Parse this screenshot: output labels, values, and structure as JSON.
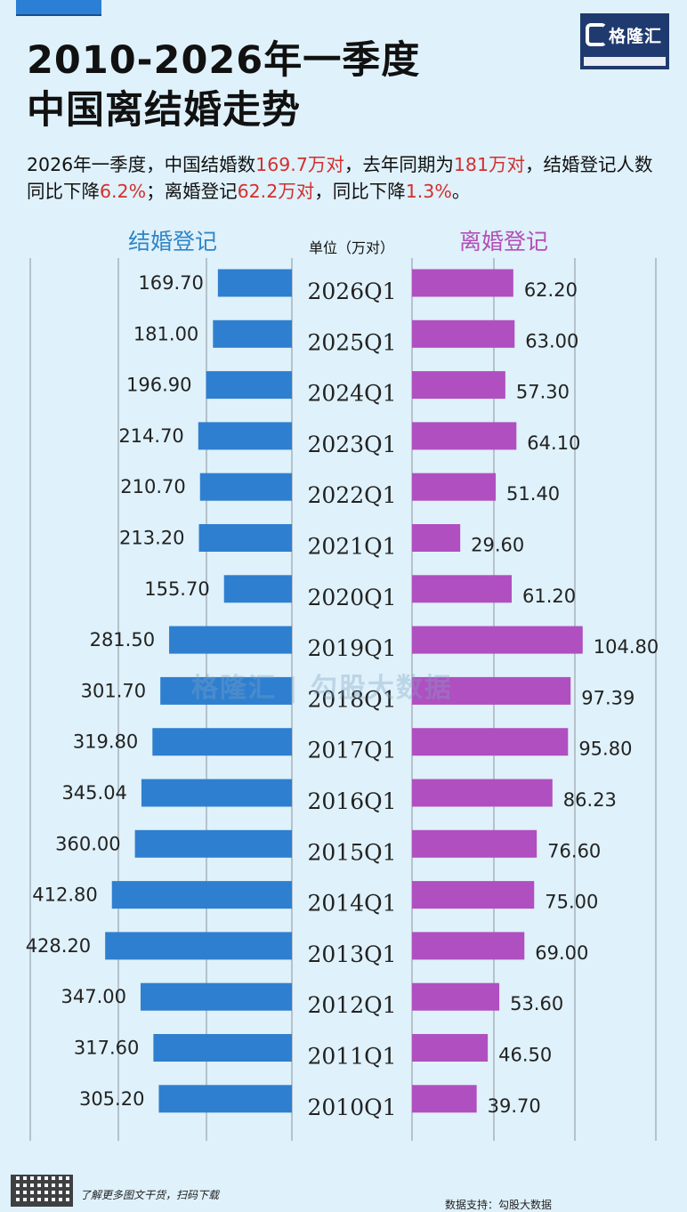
{
  "title_line1": "2010-2026年一季度",
  "title_line2": "中国离结婚走势",
  "logo_text": "格隆汇",
  "summary": {
    "p1": "2026年一季度，中国结婚数",
    "v1": "169.7万对",
    "p2": "，去年同期为",
    "v2": "181万对",
    "p3": "，结婚登记人数同比下降",
    "v3": "6.2%",
    "p4": "；离婚登记",
    "v4": "62.2万对",
    "p5": "，同比下降",
    "v5": "1.3%",
    "p6": "。"
  },
  "watermark": "格隆汇 | 勾股大数据",
  "footer_left": "了解更多图文干货，扫码下载",
  "footer_right": "数据支持：勾股大数据",
  "colors": {
    "marriage": "#2f7fd0",
    "divorce": "#b04fc0",
    "highlight": "#d32f2f",
    "background": "#dff1fa"
  },
  "chart_data": {
    "type": "bar",
    "orientation": "horizontal-butterfly",
    "unit": "单位（万对）",
    "categories": [
      "2026Q1",
      "2025Q1",
      "2024Q1",
      "2023Q1",
      "2022Q1",
      "2021Q1",
      "2020Q1",
      "2019Q1",
      "2018Q1",
      "2017Q1",
      "2016Q1",
      "2015Q1",
      "2014Q1",
      "2013Q1",
      "2012Q1",
      "2011Q1",
      "2010Q1"
    ],
    "series": [
      {
        "name": "结婚登记",
        "side": "left",
        "values": [
          169.7,
          181.0,
          196.9,
          214.7,
          210.7,
          213.2,
          155.7,
          281.5,
          301.7,
          319.8,
          345.04,
          360.0,
          412.8,
          428.2,
          347.0,
          317.6,
          305.2
        ],
        "labels": [
          "169.70",
          "181.00",
          "196.90",
          "214.70",
          "210.70",
          "213.20",
          "155.70",
          "281.50",
          "301.70",
          "319.80",
          "345.04",
          "360.00",
          "412.80",
          "428.20",
          "347.00",
          "317.60",
          "305.20"
        ]
      },
      {
        "name": "离婚登记",
        "side": "right",
        "values": [
          62.2,
          63.0,
          57.3,
          64.1,
          51.4,
          29.6,
          61.2,
          104.8,
          97.39,
          95.8,
          86.23,
          76.6,
          75.0,
          69.0,
          53.6,
          46.5,
          39.7
        ],
        "labels": [
          "62.20",
          "63.00",
          "57.30",
          "64.10",
          "51.40",
          "29.60",
          "61.20",
          "104.80",
          "97.39",
          "95.80",
          "86.23",
          "76.60",
          "75.00",
          "69.00",
          "53.60",
          "46.50",
          "39.70"
        ]
      }
    ],
    "grid": true,
    "legend": "top"
  }
}
